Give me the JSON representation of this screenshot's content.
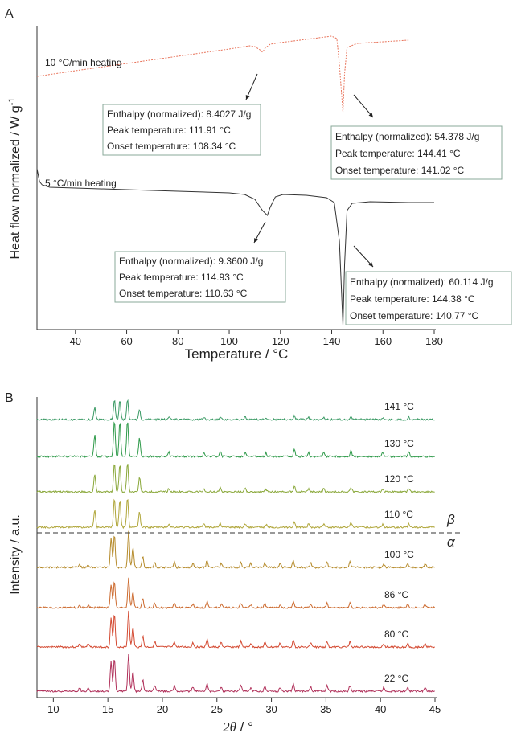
{
  "panel_a": {
    "letter": "A",
    "chart_data": {
      "type": "line",
      "xlabel": "Temperature / °C",
      "ylabel": "Heat flow normalized / W g",
      "ylabel_superscript": "-1",
      "xlim": [
        25,
        180
      ],
      "x_ticks": [
        40,
        60,
        80,
        100,
        120,
        140,
        160,
        180
      ],
      "series": [
        {
          "name": "10 °C/min heating",
          "color": "#e8735a",
          "style": "dotted",
          "points": [
            [
              25,
              95
            ],
            [
              40,
              88
            ],
            [
              60,
              79
            ],
            [
              80,
              70
            ],
            [
              100,
              61
            ],
            [
              108,
              57
            ],
            [
              110,
              58
            ],
            [
              112,
              62
            ],
            [
              113,
              65
            ],
            [
              114,
              60
            ],
            [
              116,
              55
            ],
            [
              120,
              53
            ],
            [
              130,
              49
            ],
            [
              140,
              45
            ],
            [
              142,
              48
            ],
            [
              143,
              80
            ],
            [
              144.4,
              140
            ],
            [
              145,
              92
            ],
            [
              146,
              59
            ],
            [
              150,
              54
            ],
            [
              160,
              52
            ],
            [
              170,
              50
            ]
          ],
          "peaks": [
            {
              "x": 111.91,
              "enthalpy": "Enthalpy (normalized): 8.4027 J/g",
              "peak": "Peak temperature: 111.91 °C",
              "onset": "Onset temperature: 108.34 °C"
            },
            {
              "x": 144.41,
              "enthalpy": "Enthalpy (normalized): 54.378 J/g",
              "peak": "Peak temperature: 144.41 °C",
              "onset": "Onset temperature: 141.02 °C"
            }
          ]
        },
        {
          "name": "5 °C/min heating",
          "color": "#333333",
          "style": "solid",
          "points": [
            [
              25,
              210
            ],
            [
              26,
              226
            ],
            [
              27,
              230
            ],
            [
              30,
              233
            ],
            [
              40,
              234
            ],
            [
              60,
              236
            ],
            [
              80,
              238
            ],
            [
              100,
              240
            ],
            [
              106,
              242
            ],
            [
              110,
              248
            ],
            [
              113,
              262
            ],
            [
              114.9,
              268
            ],
            [
              116,
              258
            ],
            [
              118,
              245
            ],
            [
              121,
              242
            ],
            [
              130,
              243
            ],
            [
              138,
              246
            ],
            [
              141,
              252
            ],
            [
              143,
              300
            ],
            [
              144.38,
              405
            ],
            [
              145,
              330
            ],
            [
              146,
              262
            ],
            [
              148,
              253
            ],
            [
              155,
              251
            ],
            [
              170,
              252
            ],
            [
              180,
              252
            ]
          ],
          "peaks": [
            {
              "x": 114.93,
              "enthalpy": "Enthalpy (normalized): 9.3600 J/g",
              "peak": "Peak temperature: 114.93 °C",
              "onset": "Onset temperature: 110.63 °C"
            },
            {
              "x": 144.38,
              "enthalpy": "Enthalpy (normalized): 60.114 J/g",
              "peak": "Peak temperature: 144.38 °C",
              "onset": "Onset temperature: 140.77 °C"
            }
          ]
        }
      ]
    }
  },
  "panel_b": {
    "letter": "B",
    "chart_data": {
      "type": "line",
      "xlabel_italic": "2θ",
      "xlabel_rest": " / °",
      "ylabel": "Intensity / a.u.",
      "xlim": [
        8.5,
        45
      ],
      "x_ticks": [
        10,
        15,
        20,
        25,
        30,
        35,
        40,
        45
      ],
      "phase_labels": {
        "above": "β",
        "below": "α"
      },
      "beta_peaks": [
        [
          13.8,
          0.6
        ],
        [
          15.6,
          1
        ],
        [
          16.1,
          0.95
        ],
        [
          16.8,
          1
        ],
        [
          17.9,
          0.5
        ],
        [
          20.6,
          0.12
        ],
        [
          23.8,
          0.1
        ],
        [
          25.3,
          0.15
        ],
        [
          27.6,
          0.12
        ],
        [
          29.5,
          0.1
        ],
        [
          32.1,
          0.2
        ],
        [
          33.4,
          0.1
        ],
        [
          34.8,
          0.12
        ],
        [
          37.3,
          0.15
        ],
        [
          40.2,
          0.1
        ],
        [
          42.6,
          0.12
        ]
      ],
      "alpha_peaks": [
        [
          12.4,
          0.1
        ],
        [
          13.2,
          0.08
        ],
        [
          15.3,
          0.8
        ],
        [
          15.6,
          0.9
        ],
        [
          16.9,
          1
        ],
        [
          17.3,
          0.55
        ],
        [
          18.2,
          0.3
        ],
        [
          19.3,
          0.15
        ],
        [
          21.1,
          0.15
        ],
        [
          22.8,
          0.12
        ],
        [
          24.1,
          0.2
        ],
        [
          25.4,
          0.12
        ],
        [
          27.2,
          0.15
        ],
        [
          28.1,
          0.1
        ],
        [
          29.4,
          0.12
        ],
        [
          30.8,
          0.1
        ],
        [
          32.0,
          0.2
        ],
        [
          33.6,
          0.12
        ],
        [
          35.1,
          0.15
        ],
        [
          37.2,
          0.15
        ],
        [
          40.3,
          0.1
        ],
        [
          42.5,
          0.1
        ],
        [
          44.1,
          0.1
        ]
      ],
      "series": [
        {
          "name": "141 °C",
          "phase": "beta",
          "color": "#3a9a64",
          "scale": 0.55
        },
        {
          "name": "130 °C",
          "phase": "beta",
          "color": "#2f9a4a",
          "scale": 1.0
        },
        {
          "name": "120 °C",
          "phase": "beta",
          "color": "#8aa83a",
          "scale": 0.8
        },
        {
          "name": "110 °C",
          "phase": "beta",
          "color": "#b0a63a",
          "scale": 0.8
        },
        {
          "name": "100 °C",
          "phase": "alpha",
          "color": "#b58a2a",
          "scale": 1.0
        },
        {
          "name": "86 °C",
          "phase": "alpha",
          "color": "#cc6a2e",
          "scale": 0.8
        },
        {
          "name": "80 °C",
          "phase": "alpha",
          "color": "#d44a32",
          "scale": 1.0
        },
        {
          "name": "22 °C",
          "phase": "alpha",
          "color": "#b0305a",
          "scale": 1.0
        }
      ]
    }
  }
}
